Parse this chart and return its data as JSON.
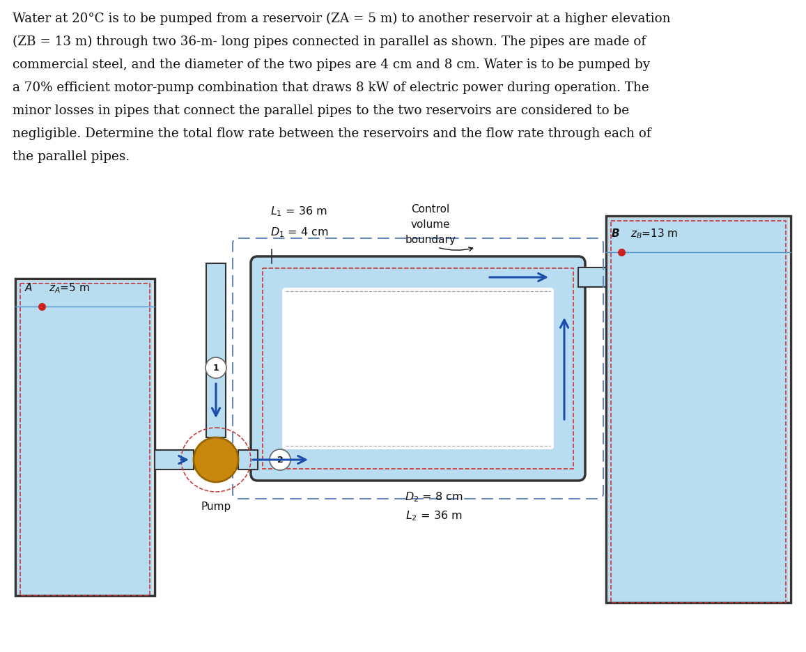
{
  "bg": "#ffffff",
  "water": "#b8dcf0",
  "pipe_out": "#333333",
  "dash_red": "#cc3333",
  "arrow_col": "#1a4eaa",
  "pump_fill": "#c8880e",
  "pump_edge": "#996600",
  "text_col": "#111111",
  "figsize": [
    11.57,
    9.36
  ],
  "dpi": 100,
  "lines": [
    "Water at 20°C is to be pumped from a reservoir (ZA = 5 m) to another reservoir at a higher elevation",
    "(ZB = 13 m) through two 36-m- long pipes connected in parallel as shown. The pipes are made of",
    "commercial steel, and the diameter of the two pipes are 4 cm and 8 cm. Water is to be pumped by",
    "a 70% efficient motor-pump combination that draws 8 kW of electric power during operation. The",
    "minor losses in pipes that connect the parallel pipes to the two reservoirs are considered to be",
    "negligible. Determine the total flow rate between the reservoirs and the flow rate through each of",
    "the parallel pipes."
  ]
}
